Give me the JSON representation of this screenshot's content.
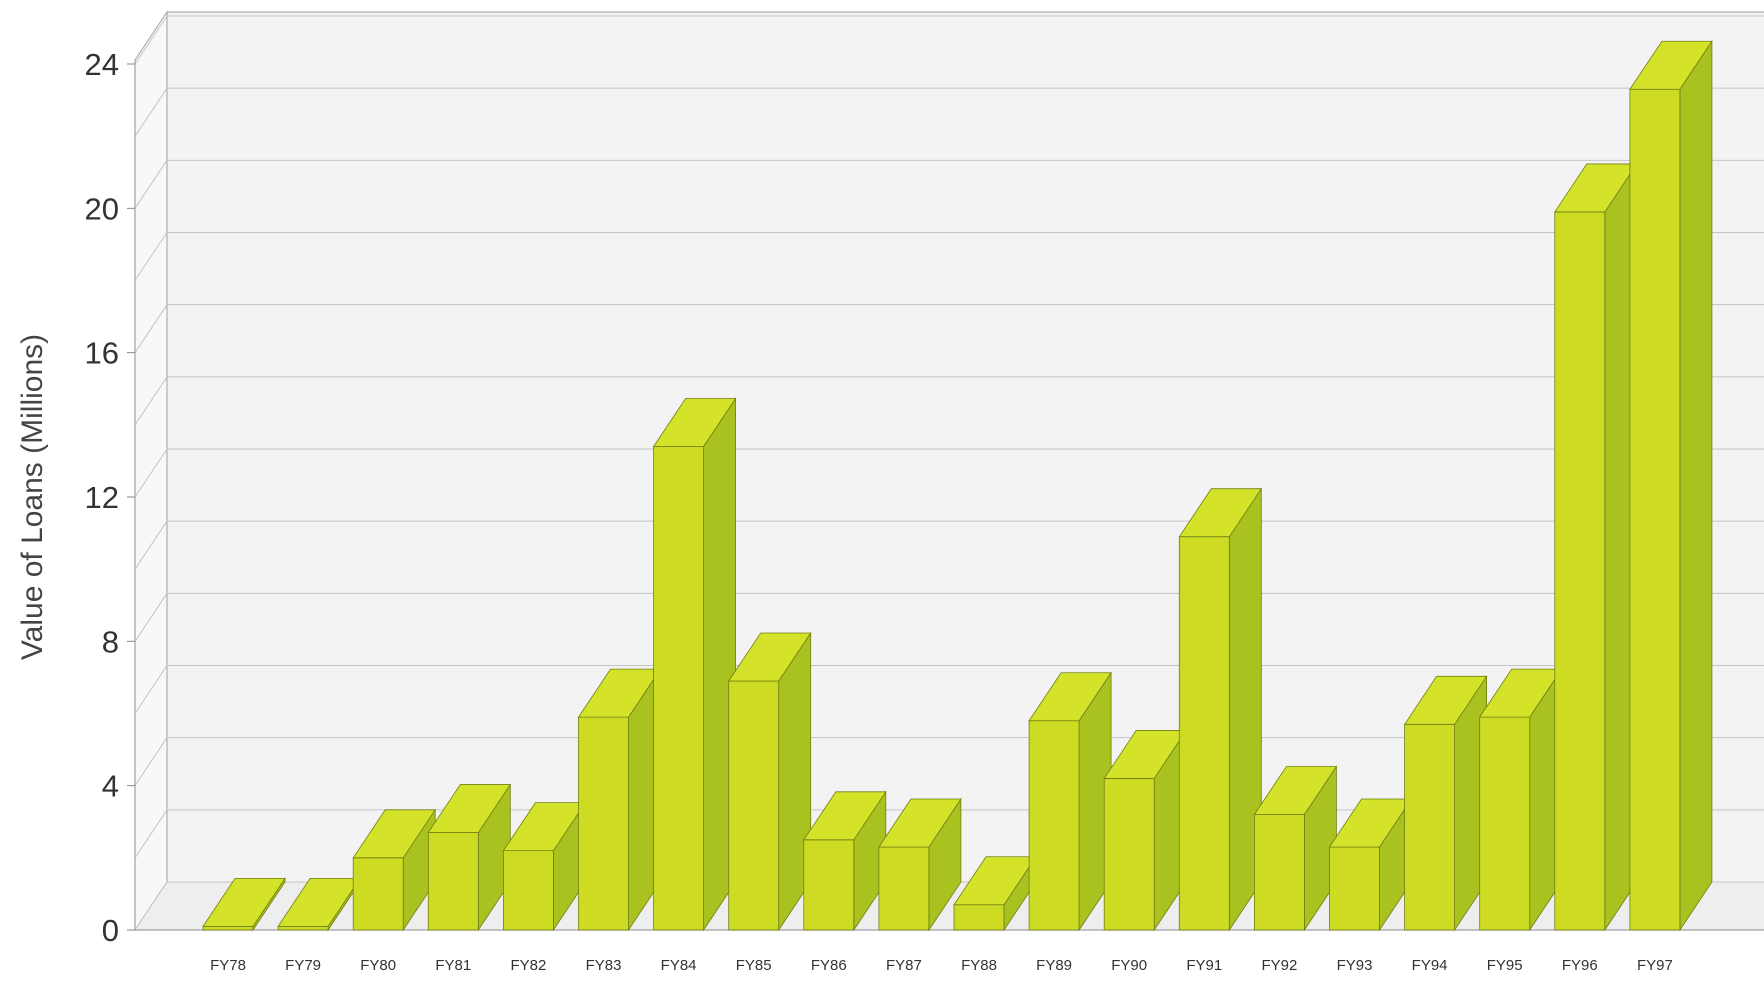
{
  "chart_data": {
    "type": "bar",
    "style": "3d-column",
    "title": "",
    "xlabel": "",
    "ylabel": "Value of Loans (Millions)",
    "ylim": [
      0,
      24
    ],
    "yticks": [
      "0",
      "4",
      "8",
      "12",
      "16",
      "20",
      "24"
    ],
    "grid": true,
    "categories": [
      "FY78",
      "FY79",
      "FY80",
      "FY81",
      "FY82",
      "FY83",
      "FY84",
      "FY85",
      "FY86",
      "FY87",
      "FY88",
      "FY89",
      "FY90",
      "FY91",
      "FY92",
      "FY93",
      "FY94",
      "FY95",
      "FY96",
      "FY97"
    ],
    "values": [
      0.1,
      0.1,
      2.0,
      2.7,
      2.2,
      5.9,
      13.4,
      6.9,
      2.5,
      2.3,
      0.7,
      5.8,
      4.2,
      10.9,
      3.2,
      2.3,
      5.7,
      5.9,
      19.9,
      23.3
    ],
    "colors": {
      "bar_front": "#cddc22",
      "bar_top": "#d4e22a",
      "bar_side": "#a9c21f",
      "bar_edge": "#6f7f14",
      "wall": "#f3f3f3",
      "floor": "#eeeeee",
      "grid": "#c4c4c4",
      "wall_edge": "#a0a0a0"
    }
  }
}
